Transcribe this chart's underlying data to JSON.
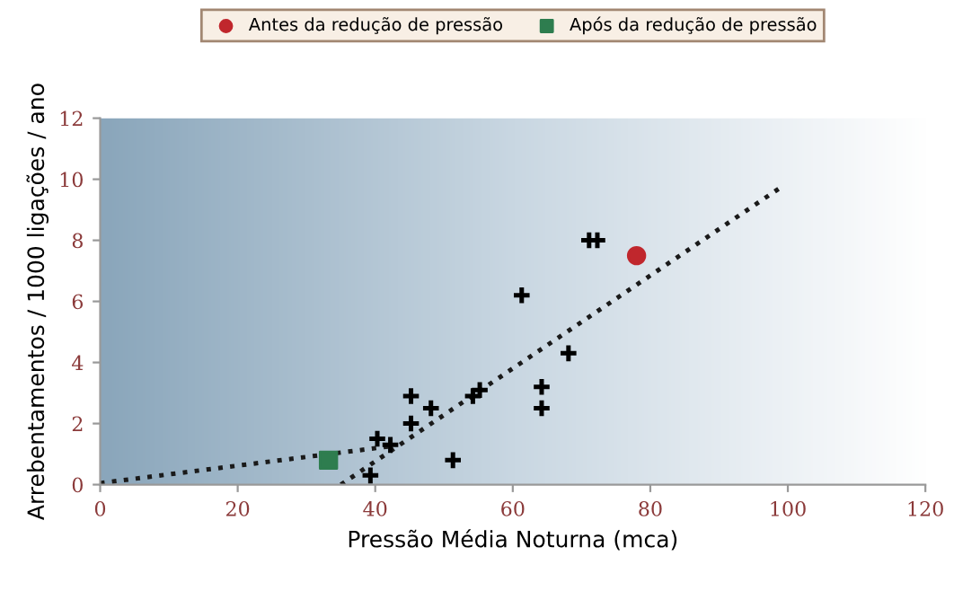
{
  "chart_data": {
    "type": "scatter",
    "xlabel": "Pressão Média Noturna (mca)",
    "ylabel": "Arrebentamentos / 1000 ligações / ano",
    "xlim": [
      0,
      120
    ],
    "ylim": [
      0,
      12
    ],
    "xticks": [
      0,
      20,
      40,
      60,
      80,
      100,
      120
    ],
    "yticks": [
      0,
      2,
      4,
      6,
      8,
      10,
      12
    ],
    "grid": false,
    "legend": "top",
    "series": [
      {
        "color": "#000000",
        "marker": "cross",
        "x": [
          40.3,
          42.2,
          39.3,
          45.2,
          45.2,
          48.1,
          51.3,
          54.2,
          55.2,
          61.3,
          64.2,
          64.2,
          68.1,
          71.1,
          72.3
        ],
        "values": [
          1.5,
          1.3,
          0.3,
          2.9,
          2.0,
          2.5,
          0.8,
          2.9,
          3.1,
          6.2,
          3.2,
          2.5,
          4.3,
          8.0,
          8.0
        ]
      },
      {
        "name": "Antes da redução de pressão",
        "color": "#c0272d",
        "marker": "circle",
        "x": [
          78.0
        ],
        "values": [
          7.5
        ]
      },
      {
        "name": "Após da redução de pressão",
        "color": "#2e7d4f",
        "marker": "square",
        "x": [
          33.2
        ],
        "values": [
          0.8
        ]
      },
      {
        "type": "line",
        "color": "#1a1a1a",
        "line_style": "dotted",
        "marker": "none",
        "x": [
          0,
          42
        ],
        "values": [
          0.05,
          1.25
        ]
      },
      {
        "type": "line",
        "color": "#1a1a1a",
        "line_style": "dotted",
        "marker": "none",
        "x": [
          35,
          99.4
        ],
        "values": [
          0,
          9.8
        ]
      }
    ]
  }
}
